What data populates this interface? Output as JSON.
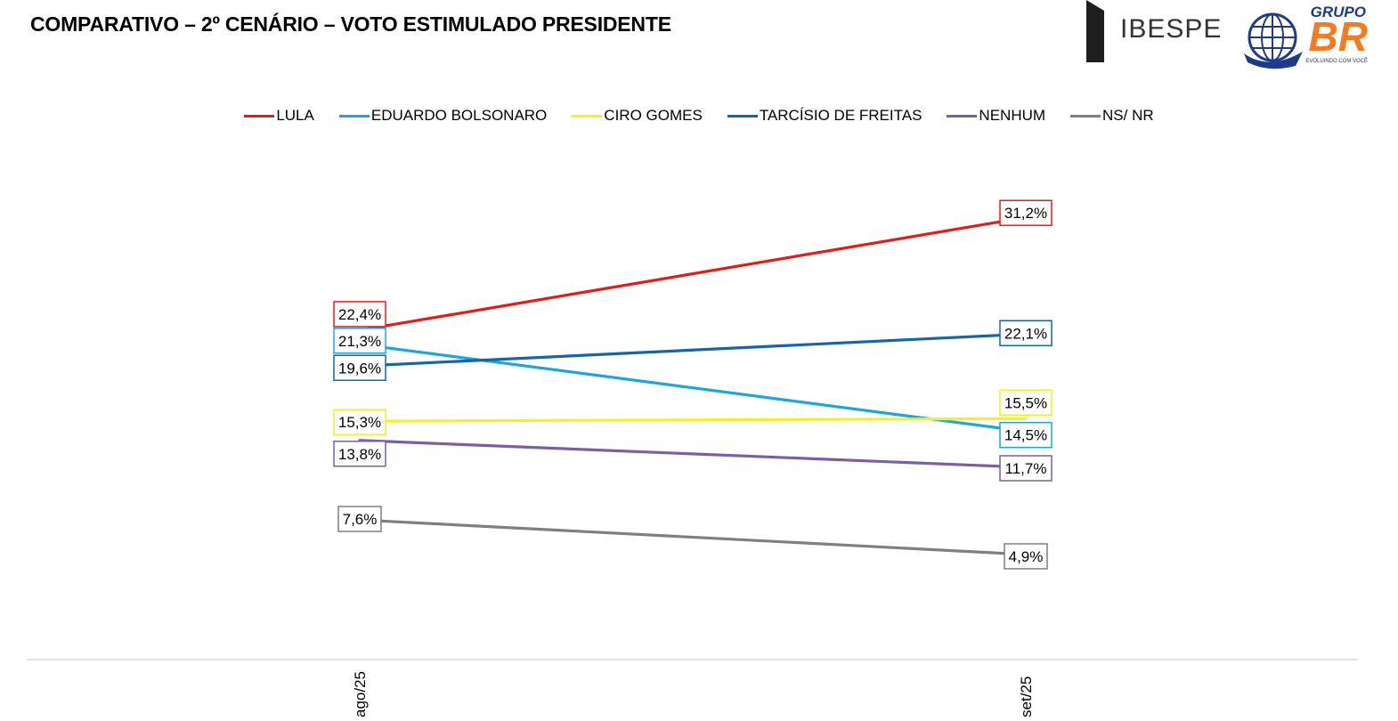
{
  "title": "COMPARATIVO – 2º CENÁRIO – VOTO ESTIMULADO PRESIDENTE",
  "logos": {
    "ibespe": "IBESPE",
    "grupobr_top": "GRUPO",
    "grupobr_main": "BR",
    "grupobr_slogan": "EVOLUINDO COM VOCÊ"
  },
  "chart_data": {
    "type": "line",
    "x": [
      "ago/25",
      "set/25"
    ],
    "legend_position": "top",
    "grid": false,
    "series": [
      {
        "name": "LULA",
        "color": "#e41b17",
        "values": [
          22.4,
          31.2
        ],
        "labels": [
          "22,4%",
          "31,2%"
        ]
      },
      {
        "name": "EDUARDO BOLSONARO",
        "color": "#1aa7e0",
        "values": [
          21.3,
          14.5
        ],
        "labels": [
          "21,3%",
          "14,5%"
        ]
      },
      {
        "name": "CIRO GOMES",
        "color": "#f5f11e",
        "values": [
          15.3,
          15.5
        ],
        "labels": [
          "15,3%",
          "15,5%"
        ]
      },
      {
        "name": "TARCÍSIO DE FREITAS",
        "color": "#1565ad",
        "values": [
          19.6,
          22.1
        ],
        "labels": [
          "19,6%",
          "22,1%"
        ]
      },
      {
        "name": "NENHUM",
        "color": "#7b5ea7",
        "values": [
          13.8,
          11.7
        ],
        "labels": [
          "13,8%",
          "11,7%"
        ]
      },
      {
        "name": "NS/ NR",
        "color": "#7f7f7f",
        "values": [
          7.6,
          4.9
        ],
        "labels": [
          "7,6%",
          "4,9%"
        ]
      }
    ]
  }
}
